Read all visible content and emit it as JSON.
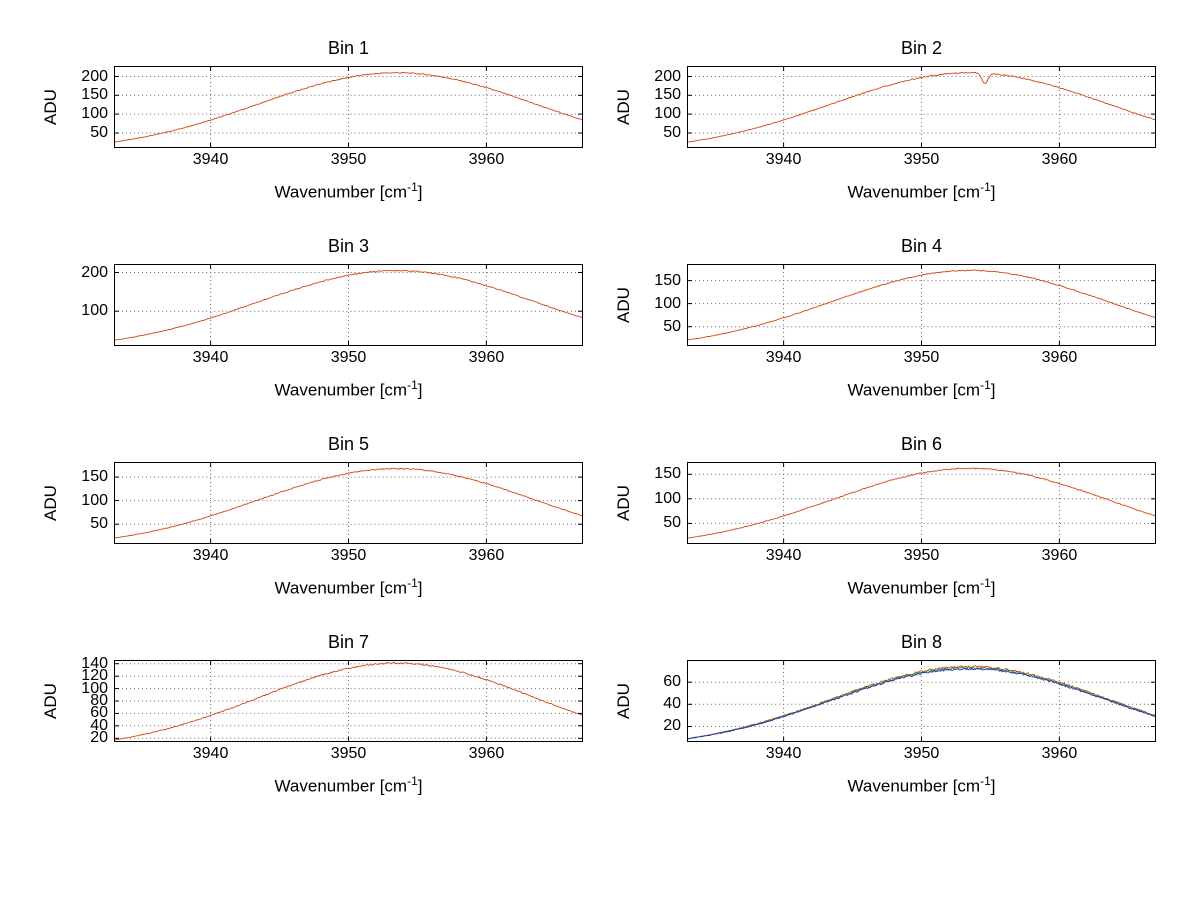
{
  "figure": {
    "background": "#ffffff",
    "grid_style": "dotted",
    "primary_line_color": "#d04a10"
  },
  "labels": {
    "xlabel_prefix": "Wavenumber [cm",
    "xlabel_sup": "-1",
    "xlabel_suffix": "]"
  },
  "chart_data": [
    {
      "type": "line",
      "title": "Bin 1",
      "ylabel": "ADU",
      "xlabel": "Wavenumber [cm^-1]",
      "x_range": [
        3933,
        3967
      ],
      "xticks": [
        3940,
        3950,
        3960
      ],
      "yticks": [
        50,
        100,
        150,
        200
      ],
      "ylim": [
        10,
        228
      ],
      "grid": true,
      "x_samples": [
        3934,
        3938,
        3942,
        3946,
        3950,
        3954,
        3958,
        3962,
        3966
      ],
      "series": [
        {
          "name": "spectrum",
          "color": "#d04a10",
          "peak": 210,
          "center": 3953.5,
          "sigma": 10,
          "noise": 3,
          "y_samples": [
            31,
            63,
            108,
            159,
            198,
            210,
            190,
            146,
            96
          ]
        }
      ]
    },
    {
      "type": "line",
      "title": "Bin 2",
      "ylabel": "ADU",
      "xlabel": "Wavenumber [cm^-1]",
      "x_range": [
        3933,
        3967
      ],
      "xticks": [
        3940,
        3950,
        3960
      ],
      "yticks": [
        50,
        100,
        150,
        200
      ],
      "ylim": [
        10,
        228
      ],
      "grid": true,
      "x_samples": [
        3934,
        3938,
        3942,
        3946,
        3950,
        3954,
        3958,
        3962,
        3966
      ],
      "series": [
        {
          "name": "spectrum",
          "color": "#d04a10",
          "peak": 210,
          "center": 3953.5,
          "sigma": 10,
          "noise": 3,
          "dip": {
            "x": 3954.6,
            "depth": 28,
            "width": 0.3
          },
          "y_samples": [
            31,
            63,
            108,
            159,
            198,
            210,
            190,
            146,
            96
          ]
        }
      ]
    },
    {
      "type": "line",
      "title": "Bin 3",
      "ylabel": "",
      "xlabel": "Wavenumber [cm^-1]",
      "x_range": [
        3933,
        3967
      ],
      "xticks": [
        3940,
        3950,
        3960
      ],
      "yticks": [
        100,
        200
      ],
      "ylim": [
        10,
        222
      ],
      "grid": true,
      "x_samples": [
        3934,
        3938,
        3942,
        3946,
        3950,
        3954,
        3958,
        3962,
        3966
      ],
      "series": [
        {
          "name": "spectrum",
          "color": "#d04a10",
          "peak": 205,
          "center": 3953.5,
          "sigma": 10,
          "noise": 3,
          "y_samples": [
            31,
            62,
            106,
            155,
            193,
            205,
            185,
            143,
            94
          ]
        }
      ]
    },
    {
      "type": "line",
      "title": "Bin 4",
      "ylabel": "ADU",
      "xlabel": "Wavenumber [cm^-1]",
      "x_range": [
        3933,
        3967
      ],
      "xticks": [
        3940,
        3950,
        3960
      ],
      "yticks": [
        50,
        100,
        150
      ],
      "ylim": [
        8,
        186
      ],
      "grid": true,
      "x_samples": [
        3934,
        3938,
        3942,
        3946,
        3950,
        3954,
        3958,
        3962,
        3966
      ],
      "series": [
        {
          "name": "spectrum",
          "color": "#d04a10",
          "peak": 172,
          "center": 3953.5,
          "sigma": 10,
          "noise": 2.5,
          "y_samples": [
            26,
            52,
            89,
            130,
            162,
            172,
            155,
            120,
            79
          ]
        }
      ]
    },
    {
      "type": "line",
      "title": "Bin 5",
      "ylabel": "ADU",
      "xlabel": "Wavenumber [cm^-1]",
      "x_range": [
        3933,
        3967
      ],
      "xticks": [
        3940,
        3950,
        3960
      ],
      "yticks": [
        50,
        100,
        150
      ],
      "ylim": [
        8,
        182
      ],
      "grid": true,
      "x_samples": [
        3934,
        3938,
        3942,
        3946,
        3950,
        3954,
        3958,
        3962,
        3966
      ],
      "series": [
        {
          "name": "spectrum",
          "color": "#d04a10",
          "peak": 168,
          "center": 3953.5,
          "sigma": 10,
          "noise": 2.5,
          "y_samples": [
            25,
            51,
            87,
            127,
            158,
            168,
            152,
            117,
            77
          ]
        }
      ]
    },
    {
      "type": "line",
      "title": "Bin 6",
      "ylabel": "ADU",
      "xlabel": "Wavenumber [cm^-1]",
      "x_range": [
        3933,
        3967
      ],
      "xticks": [
        3940,
        3950,
        3960
      ],
      "yticks": [
        50,
        100,
        150
      ],
      "ylim": [
        8,
        175
      ],
      "grid": true,
      "x_samples": [
        3934,
        3938,
        3942,
        3946,
        3950,
        3954,
        3958,
        3962,
        3966
      ],
      "series": [
        {
          "name": "spectrum",
          "color": "#d04a10",
          "peak": 162,
          "center": 3953.5,
          "sigma": 10,
          "noise": 2.5,
          "y_samples": [
            24,
            49,
            84,
            122,
            152,
            162,
            146,
            113,
            74
          ]
        }
      ]
    },
    {
      "type": "line",
      "title": "Bin 7",
      "ylabel": "ADU",
      "xlabel": "Wavenumber [cm^-1]",
      "x_range": [
        3933,
        3967
      ],
      "xticks": [
        3940,
        3950,
        3960
      ],
      "yticks": [
        20,
        40,
        60,
        80,
        100,
        120,
        140
      ],
      "ylim": [
        14,
        146
      ],
      "grid": true,
      "x_samples": [
        3934,
        3938,
        3942,
        3946,
        3950,
        3954,
        3958,
        3962,
        3966
      ],
      "series": [
        {
          "name": "spectrum",
          "color": "#d04a10",
          "peak": 141,
          "center": 3953.5,
          "sigma": 10,
          "noise": 2.2,
          "y_samples": [
            21,
            42,
            73,
            106,
            133,
            141,
            127,
            98,
            65
          ]
        }
      ]
    },
    {
      "type": "line",
      "title": "Bin 8",
      "ylabel": "ADU",
      "xlabel": "Wavenumber [cm^-1]",
      "x_range": [
        3933,
        3967
      ],
      "xticks": [
        3940,
        3950,
        3960
      ],
      "yticks": [
        20,
        40,
        60
      ],
      "ylim": [
        6,
        80
      ],
      "grid": true,
      "x_samples": [
        3934,
        3938,
        3942,
        3946,
        3950,
        3954,
        3958,
        3962,
        3966
      ],
      "series": [
        {
          "name": "spectrum-red",
          "color": "#d04a10",
          "peak": 74,
          "center": 3953.5,
          "sigma": 10,
          "noise": 1.8,
          "y_samples": [
            11,
            22,
            38,
            56,
            70,
            74,
            67,
            52,
            34
          ]
        },
        {
          "name": "spectrum-green",
          "color": "#2e8f2e",
          "peak": 73,
          "center": 3953.5,
          "sigma": 10,
          "noise": 1.8,
          "y_samples": [
            11,
            22,
            38,
            55,
            69,
            73,
            66,
            51,
            33
          ]
        },
        {
          "name": "spectrum-blue",
          "color": "#2233bb",
          "peak": 72,
          "center": 3953.5,
          "sigma": 10,
          "noise": 1.8,
          "y_samples": [
            11,
            22,
            37,
            54,
            68,
            72,
            65,
            50,
            33
          ]
        }
      ]
    }
  ]
}
